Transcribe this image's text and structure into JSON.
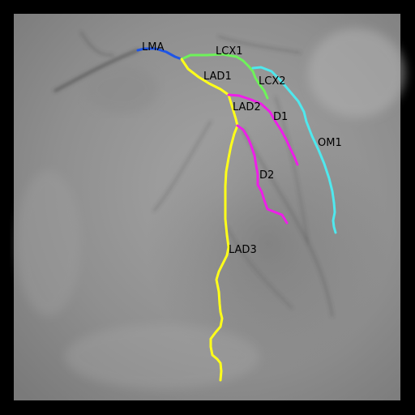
{
  "image": {
    "modality": "coronary angiogram",
    "background_color": "#000000",
    "film_tone": "#9a9a9a"
  },
  "segments": [
    {
      "id": "LMA",
      "label": "LMA",
      "color": "#1f55e6"
    },
    {
      "id": "LCX1",
      "label": "LCX1",
      "color": "#6ef25a"
    },
    {
      "id": "LCX2",
      "label": "LCX2",
      "color": "#6ef25a"
    },
    {
      "id": "OM1",
      "label": "OM1",
      "color": "#4fe8ee"
    },
    {
      "id": "LAD1",
      "label": "LAD1",
      "color": "#ffff1a"
    },
    {
      "id": "LAD2",
      "label": "LAD2",
      "color": "#ffff1a"
    },
    {
      "id": "LAD3",
      "label": "LAD3",
      "color": "#ffff1a"
    },
    {
      "id": "D1",
      "label": "D1",
      "color": "#ee1ee8"
    },
    {
      "id": "D2",
      "label": "D2",
      "color": "#ee1ee8"
    }
  ]
}
